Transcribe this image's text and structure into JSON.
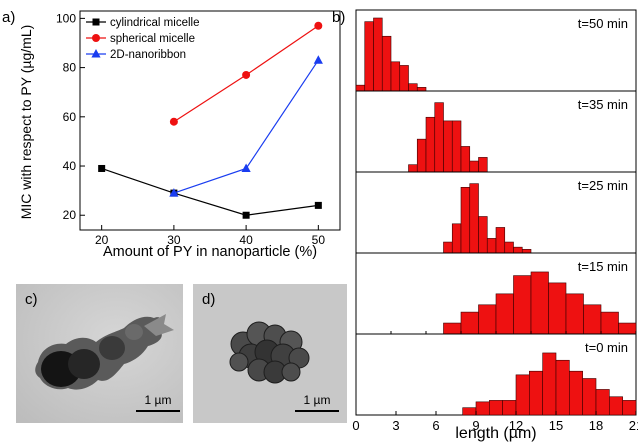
{
  "panels": {
    "a": "a)",
    "b": "b)",
    "c": "c)",
    "d": "d)"
  },
  "micrographs": {
    "scale_bar_c": "1 µm",
    "scale_bar_d": "1 µm"
  },
  "chart_data": [
    {
      "type": "line",
      "panel": "a",
      "xlabel": "Amount of PY in nanoparticle (%)",
      "ylabel": "MIC with respect to PY (µg/mL)",
      "xlim": [
        17,
        53
      ],
      "ylim": [
        14,
        103
      ],
      "xticks": [
        20,
        30,
        40,
        50
      ],
      "yticks": [
        20,
        40,
        60,
        80,
        100
      ],
      "legend_position": "top-left",
      "grid": false,
      "series": [
        {
          "name": "cylindrical micelle",
          "color": "#000000",
          "marker": "square",
          "x": [
            20,
            30,
            40,
            50
          ],
          "y": [
            39,
            29,
            20,
            24
          ]
        },
        {
          "name": "spherical micelle",
          "color": "#ee1111",
          "marker": "circle",
          "x": [
            30,
            40,
            50
          ],
          "y": [
            58,
            77,
            97
          ]
        },
        {
          "name": "2D-nanoribbon",
          "color": "#1a3df0",
          "marker": "triangle",
          "x": [
            30,
            40,
            50
          ],
          "y": [
            29,
            39,
            83
          ]
        }
      ]
    },
    {
      "type": "bar",
      "panel": "b",
      "xlabel": "length (µm)",
      "xlim": [
        0,
        21
      ],
      "xticks_top": [
        0,
        1,
        2,
        3,
        4,
        5,
        6,
        7,
        8
      ],
      "xticks_bottom": [
        0,
        3,
        6,
        9,
        12,
        15,
        18,
        21
      ],
      "bar_color": "#ee1111",
      "histograms": [
        {
          "label": "t=50 min",
          "bin_width": 0.25,
          "xlim": [
            0,
            8
          ],
          "counts": [
            8,
            95,
            100,
            75,
            40,
            35,
            10,
            5
          ]
        },
        {
          "label": "t=35 min",
          "bin_width": 0.25,
          "xlim": [
            0,
            8
          ],
          "counts": [
            0,
            0,
            0,
            0,
            0,
            0,
            10,
            45,
            75,
            95,
            70,
            70,
            35,
            15,
            20
          ]
        },
        {
          "label": "t=25 min",
          "bin_width": 0.25,
          "xlim": [
            0,
            8
          ],
          "counts": [
            0,
            0,
            0,
            0,
            0,
            0,
            0,
            0,
            0,
            0,
            15,
            40,
            90,
            95,
            50,
            20,
            35,
            15,
            8,
            5
          ]
        },
        {
          "label": "t=15 min",
          "bin_width": 0.5,
          "xlim": [
            0,
            8
          ],
          "counts": [
            0,
            0,
            0,
            0,
            0,
            15,
            30,
            40,
            55,
            80,
            85,
            70,
            55,
            40,
            30,
            15
          ]
        },
        {
          "label": "t=0 min",
          "bin_width": 1,
          "xlim": [
            0,
            21
          ],
          "counts": [
            0,
            0,
            0,
            0,
            0,
            0,
            0,
            0,
            10,
            18,
            20,
            20,
            55,
            60,
            85,
            75,
            60,
            50,
            35,
            25,
            20
          ]
        }
      ]
    }
  ]
}
